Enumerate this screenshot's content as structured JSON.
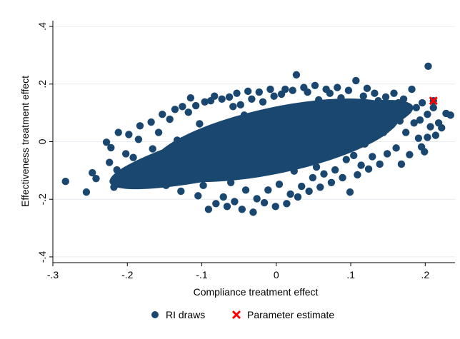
{
  "chart_data": {
    "type": "scatter",
    "xlabel": "Compliance treatment effect",
    "ylabel": "Effectiveness treatment effect",
    "xlim": [
      -0.3,
      0.24
    ],
    "ylim": [
      -0.42,
      0.42
    ],
    "x_ticks": [
      {
        "value": -0.3,
        "label": "-.3"
      },
      {
        "value": -0.2,
        "label": "-.2"
      },
      {
        "value": -0.1,
        "label": "-.1"
      },
      {
        "value": 0,
        "label": "0"
      },
      {
        "value": 0.1,
        "label": ".1"
      },
      {
        "value": 0.2,
        "label": ".2"
      }
    ],
    "y_ticks": [
      {
        "value": -0.4,
        "label": "-.4"
      },
      {
        "value": -0.2,
        "label": "-.2"
      },
      {
        "value": 0,
        "label": "0"
      },
      {
        "value": 0.2,
        "label": ".2"
      },
      {
        "value": 0.4,
        "label": ".4"
      }
    ],
    "grid": true,
    "legend_position": "bottom",
    "series": [
      {
        "name": "RI draws",
        "color": "#1a476f",
        "marker": "circle",
        "points": [
          [
            -0.283,
            -0.138
          ],
          [
            -0.255,
            -0.175
          ],
          [
            -0.247,
            -0.108
          ],
          [
            -0.242,
            -0.128
          ],
          [
            -0.228,
            -0.002
          ],
          [
            -0.224,
            -0.072
          ],
          [
            -0.222,
            -0.021
          ],
          [
            -0.218,
            -0.158
          ],
          [
            -0.214,
            -0.098
          ],
          [
            -0.212,
            0.032
          ],
          [
            -0.207,
            -0.132
          ],
          [
            -0.202,
            -0.042
          ],
          [
            -0.198,
            0.025
          ],
          [
            -0.195,
            -0.115
          ],
          [
            -0.192,
            -0.055
          ],
          [
            -0.188,
            -0.148
          ],
          [
            -0.185,
            0.008
          ],
          [
            -0.183,
            0.055
          ],
          [
            -0.178,
            -0.082
          ],
          [
            -0.173,
            -0.118
          ],
          [
            -0.168,
            0.068
          ],
          [
            -0.166,
            -0.025
          ],
          [
            -0.163,
            -0.062
          ],
          [
            -0.158,
            0.032
          ],
          [
            -0.155,
            -0.142
          ],
          [
            -0.153,
            0.095
          ],
          [
            -0.148,
            -0.152
          ],
          [
            -0.143,
            0.078
          ],
          [
            -0.138,
            -0.098
          ],
          [
            -0.136,
            0.112
          ],
          [
            -0.133,
            0.005
          ],
          [
            -0.128,
            -0.172
          ],
          [
            -0.126,
            0.122
          ],
          [
            -0.123,
            -0.035
          ],
          [
            -0.118,
            0.102
          ],
          [
            -0.115,
            0.152
          ],
          [
            -0.113,
            -0.125
          ],
          [
            -0.108,
            0.125
          ],
          [
            -0.105,
            -0.188
          ],
          [
            -0.103,
            0.062
          ],
          [
            -0.098,
            -0.152
          ],
          [
            -0.096,
            0.138
          ],
          [
            -0.093,
            -0.008
          ],
          [
            -0.091,
            -0.235
          ],
          [
            -0.088,
            0.142
          ],
          [
            -0.086,
            -0.112
          ],
          [
            -0.083,
            0.158
          ],
          [
            -0.081,
            -0.215
          ],
          [
            -0.078,
            0.052
          ],
          [
            -0.076,
            -0.062
          ],
          [
            -0.073,
            0.148
          ],
          [
            -0.071,
            -0.192
          ],
          [
            -0.068,
            0.018
          ],
          [
            -0.066,
            -0.225
          ],
          [
            -0.063,
            0.155
          ],
          [
            -0.061,
            -0.142
          ],
          [
            -0.058,
            0.122
          ],
          [
            -0.056,
            -0.208
          ],
          [
            -0.053,
            0.168
          ],
          [
            -0.051,
            -0.045
          ],
          [
            -0.048,
            0.128
          ],
          [
            -0.046,
            -0.235
          ],
          [
            -0.043,
            0.092
          ],
          [
            -0.041,
            -0.168
          ],
          [
            -0.038,
            0.175
          ],
          [
            -0.036,
            -0.018
          ],
          [
            -0.033,
            0.148
          ],
          [
            -0.031,
            -0.245
          ],
          [
            -0.028,
            0.065
          ],
          [
            -0.026,
            -0.198
          ],
          [
            -0.023,
            0.172
          ],
          [
            -0.021,
            -0.082
          ],
          [
            -0.018,
            0.138
          ],
          [
            -0.016,
            -0.212
          ],
          [
            -0.013,
            0.045
          ],
          [
            -0.011,
            -0.168
          ],
          [
            -0.008,
            0.182
          ],
          [
            -0.006,
            -0.028
          ],
          [
            -0.003,
            0.158
          ],
          [
            -0.001,
            -0.225
          ],
          [
            0.002,
            0.078
          ],
          [
            0.004,
            -0.148
          ],
          [
            0.007,
            0.165
          ],
          [
            0.009,
            -0.062
          ],
          [
            0.012,
            0.182
          ],
          [
            0.014,
            -0.215
          ],
          [
            0.017,
            0.035
          ],
          [
            0.019,
            -0.182
          ],
          [
            0.022,
            0.178
          ],
          [
            0.024,
            -0.102
          ],
          [
            0.027,
            0.232
          ],
          [
            0.029,
            -0.192
          ],
          [
            0.032,
            0.108
          ],
          [
            0.034,
            -0.155
          ],
          [
            0.037,
            0.188
          ],
          [
            0.039,
            -0.045
          ],
          [
            0.042,
            0.172
          ],
          [
            0.044,
            -0.172
          ],
          [
            0.047,
            0.062
          ],
          [
            0.049,
            -0.125
          ],
          [
            0.052,
            0.195
          ],
          [
            0.054,
            -0.088
          ],
          [
            0.057,
            0.145
          ],
          [
            0.059,
            -0.158
          ],
          [
            0.062,
            0.048
          ],
          [
            0.064,
            -0.112
          ],
          [
            0.067,
            0.182
          ],
          [
            0.069,
            -0.032
          ],
          [
            0.072,
            0.168
          ],
          [
            0.074,
            -0.142
          ],
          [
            0.077,
            0.092
          ],
          [
            0.079,
            -0.098
          ],
          [
            0.082,
            0.188
          ],
          [
            0.084,
            -0.018
          ],
          [
            0.087,
            0.152
          ],
          [
            0.089,
            -0.125
          ],
          [
            0.092,
            0.082
          ],
          [
            0.094,
            -0.062
          ],
          [
            0.097,
            0.178
          ],
          [
            0.099,
            -0.175
          ],
          [
            0.102,
            0.132
          ],
          [
            0.104,
            -0.048
          ],
          [
            0.107,
            0.212
          ],
          [
            0.109,
            -0.115
          ],
          [
            0.112,
            0.098
          ],
          [
            0.114,
            -0.082
          ],
          [
            0.117,
            0.158
          ],
          [
            0.119,
            -0.008
          ],
          [
            0.122,
            0.185
          ],
          [
            0.124,
            -0.095
          ],
          [
            0.127,
            0.118
          ],
          [
            0.129,
            -0.052
          ],
          [
            0.132,
            0.168
          ],
          [
            0.134,
            0.022
          ],
          [
            0.137,
            0.142
          ],
          [
            0.139,
            -0.078
          ],
          [
            0.142,
            0.095
          ],
          [
            0.144,
            0.032
          ],
          [
            0.147,
            0.155
          ],
          [
            0.149,
            -0.042
          ],
          [
            0.152,
            0.112
          ],
          [
            0.155,
            0.058
          ],
          [
            0.158,
            0.168
          ],
          [
            0.161,
            -0.022
          ],
          [
            0.164,
            0.135
          ],
          [
            0.166,
            0.072
          ],
          [
            0.168,
            -0.078
          ],
          [
            0.171,
            0.148
          ],
          [
            0.174,
            0.032
          ],
          [
            0.177,
            0.108
          ],
          [
            0.179,
            -0.045
          ],
          [
            0.182,
            0.182
          ],
          [
            0.185,
            0.065
          ],
          [
            0.188,
            0.118
          ],
          [
            0.191,
            0.012
          ],
          [
            0.193,
            0.075
          ],
          [
            0.196,
            0.135
          ],
          [
            0.199,
            -0.035
          ],
          [
            0.203,
            0.095
          ],
          [
            0.204,
            0.262
          ],
          [
            0.207,
            0.052
          ],
          [
            0.211,
            0.118
          ],
          [
            0.214,
            0.022
          ],
          [
            0.218,
            0.065
          ],
          [
            0.222,
            0.048
          ],
          [
            0.228,
            0.098
          ],
          [
            0.234,
            0.092
          ],
          [
            0.211,
            0.142
          ],
          [
            0.203,
            0.015
          ],
          [
            0.195,
            -0.018
          ]
        ]
      },
      {
        "name": "Parameter estimate",
        "color": "#ff0000",
        "marker": "x",
        "points": [
          [
            0.211,
            0.142
          ]
        ]
      }
    ]
  }
}
